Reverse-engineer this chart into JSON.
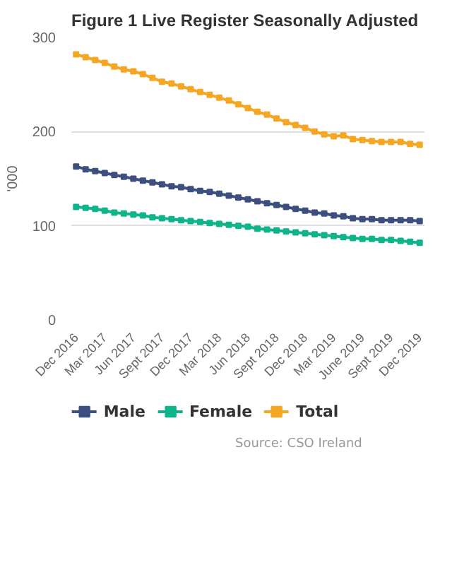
{
  "chart_data": {
    "type": "line",
    "title": "Figure 1 Live Register Seasonally Adjusted",
    "ylabel": "'000",
    "categories": [
      "Dec 2016",
      null,
      null,
      "Mar 2017",
      null,
      null,
      "Jun 2017",
      null,
      null,
      "Sept 2017",
      null,
      null,
      "Dec 2017",
      null,
      null,
      "Mar 2018",
      null,
      null,
      "Jun 2018",
      null,
      null,
      "Sept 2018",
      null,
      null,
      "Dec 2018",
      null,
      null,
      "Mar 2019",
      null,
      null,
      "June 2019",
      null,
      null,
      "Sept 2019",
      null,
      null,
      "Dec 2019"
    ],
    "series": [
      {
        "name": "Male",
        "color": "#3d4f7f",
        "values": [
          163,
          160,
          158,
          156,
          154,
          152,
          150,
          148,
          146,
          144,
          142,
          141,
          139,
          137,
          136,
          134,
          132,
          130,
          128,
          126,
          124,
          122,
          120,
          118,
          116,
          114,
          113,
          111,
          110,
          108,
          107,
          107,
          106,
          106,
          106,
          106,
          105
        ]
      },
      {
        "name": "Female",
        "color": "#10b48a",
        "values": [
          120,
          119,
          118,
          116,
          114,
          113,
          112,
          111,
          109,
          108,
          107,
          106,
          105,
          104,
          103,
          102,
          101,
          100,
          99,
          97,
          96,
          95,
          94,
          93,
          92,
          91,
          90,
          89,
          88,
          87,
          86,
          86,
          85,
          85,
          84,
          83,
          82
        ]
      },
      {
        "name": "Total",
        "color": "#f5a623",
        "values": [
          282,
          279,
          276,
          273,
          269,
          266,
          264,
          261,
          257,
          253,
          251,
          248,
          245,
          242,
          239,
          236,
          233,
          229,
          225,
          221,
          218,
          214,
          210,
          207,
          204,
          200,
          197,
          195,
          196,
          192,
          191,
          190,
          189,
          189,
          189,
          187,
          186
        ]
      }
    ],
    "ylim": [
      0,
      300
    ],
    "yticks": [
      0,
      100,
      200,
      300
    ],
    "grid": "y",
    "legend": "bottom",
    "marker": "square",
    "line_style": "solid",
    "annotations": [
      "Source: CSO Ireland"
    ]
  }
}
